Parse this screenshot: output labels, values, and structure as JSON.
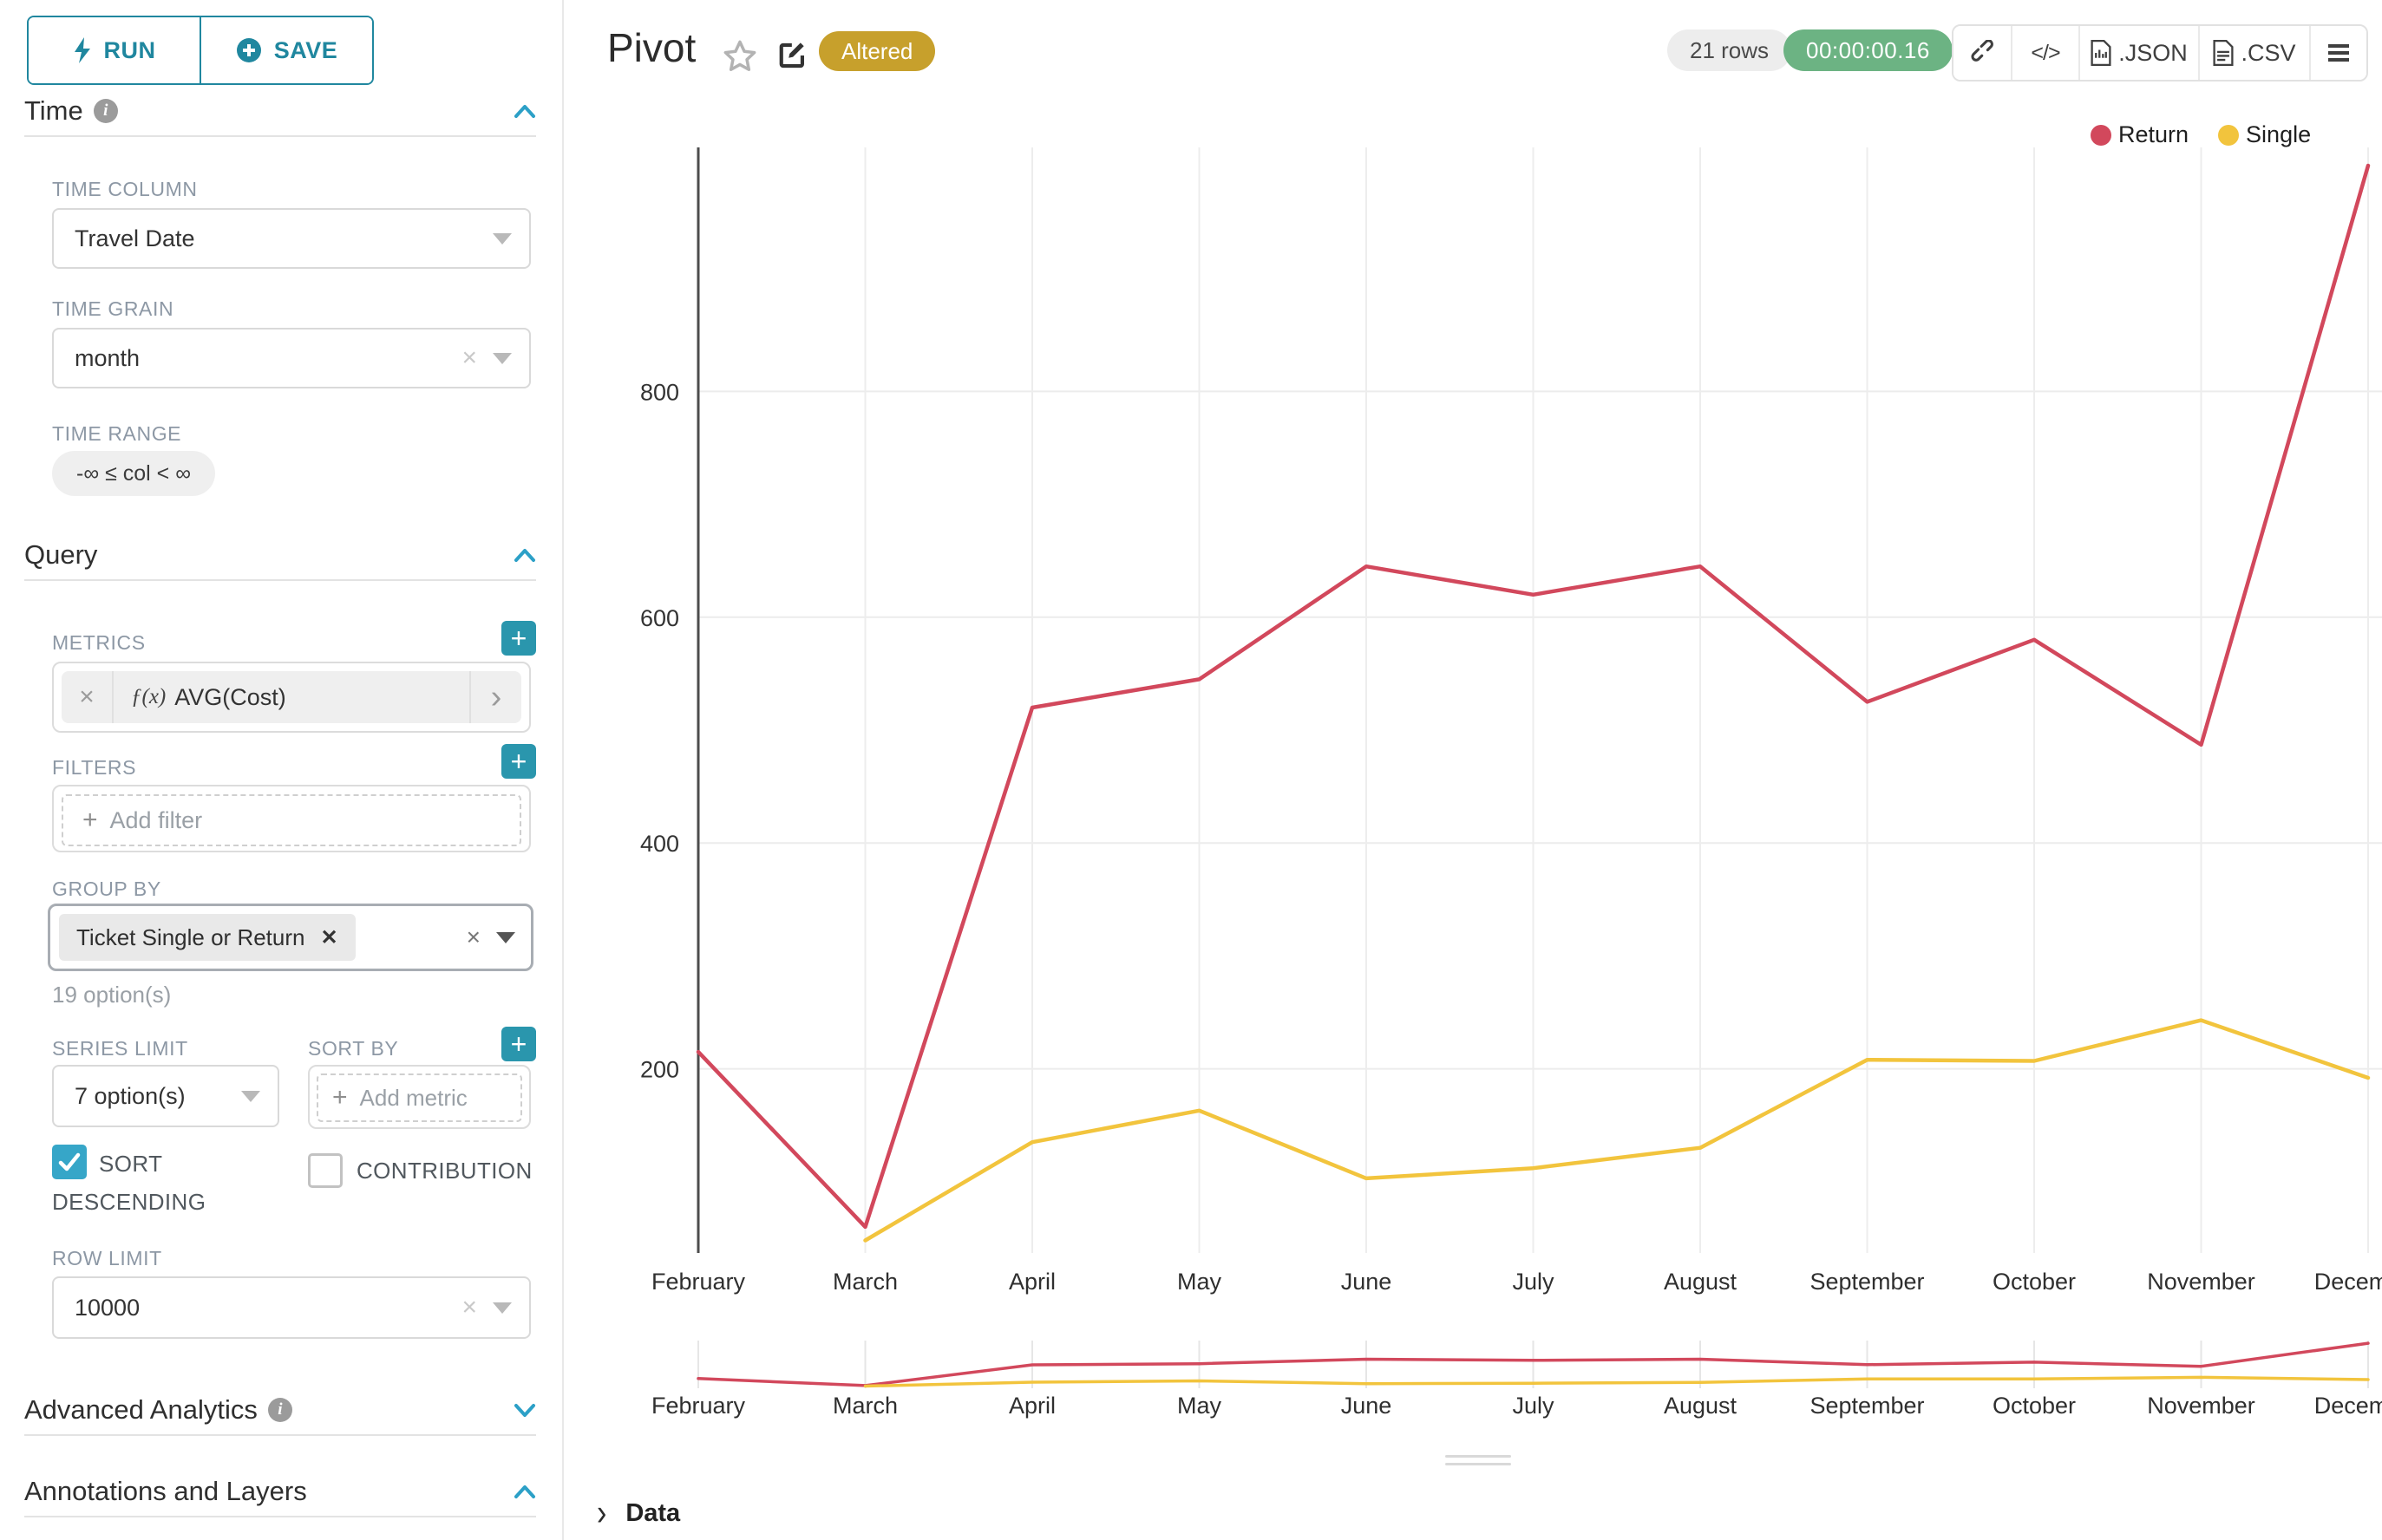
{
  "toolbar": {
    "run_label": "RUN",
    "save_label": "SAVE"
  },
  "sidebar": {
    "time_section_title": "Time",
    "query_section_title": "Query",
    "advanced_section_title": "Advanced Analytics",
    "annotations_section_title": "Annotations and Layers",
    "time_column": {
      "label": "TIME COLUMN",
      "value": "Travel Date"
    },
    "time_grain": {
      "label": "TIME GRAIN",
      "value": "month"
    },
    "time_range": {
      "label": "TIME RANGE",
      "value": "-∞ ≤ col < ∞"
    },
    "metrics": {
      "label": "METRICS",
      "fx": "ƒ(x)",
      "value": "AVG(Cost)"
    },
    "filters": {
      "label": "FILTERS",
      "placeholder": "Add filter"
    },
    "group_by": {
      "label": "GROUP BY",
      "chip": "Ticket Single or Return",
      "hint": "19 option(s)"
    },
    "series_limit": {
      "label": "SERIES LIMIT",
      "value": "7 option(s)"
    },
    "sort_by": {
      "label": "SORT BY",
      "placeholder": "Add metric"
    },
    "sort_descending": {
      "label": "SORT DESCENDING",
      "checked": true
    },
    "contribution": {
      "label": "CONTRIBUTION",
      "checked": false
    },
    "row_limit": {
      "label": "ROW LIMIT",
      "value": "10000"
    }
  },
  "header": {
    "title": "Pivot",
    "badge": "Altered",
    "rows_badge": "21 rows",
    "timer": "00:00:00.16",
    "export_json_label": ".JSON",
    "export_csv_label": ".CSV"
  },
  "chart_data": {
    "type": "line",
    "title": "",
    "xlabel": "",
    "ylabel": "",
    "categories": [
      "February",
      "March",
      "April",
      "May",
      "June",
      "July",
      "August",
      "September",
      "October",
      "November",
      "December"
    ],
    "series": [
      {
        "name": "Return",
        "color": "#d2485c",
        "values": [
          215,
          60,
          520,
          545,
          645,
          620,
          645,
          525,
          580,
          487,
          1000
        ]
      },
      {
        "name": "Single",
        "color": "#f2c43d",
        "values": [
          null,
          48,
          135,
          163,
          103,
          112,
          130,
          208,
          207,
          243,
          192
        ]
      }
    ],
    "yticks": [
      200,
      400,
      600,
      800
    ],
    "ylim": [
      0,
      1060
    ],
    "grid": true,
    "legend_position": "top-right",
    "has_preview_strip": true
  },
  "data_panel": {
    "label": "Data"
  },
  "colors": {
    "accent_teal": "#20879f",
    "plus_button": "#2a96ad",
    "checkbox_checked": "#36a6c8",
    "chevron_blue": "#2ca0c7",
    "altered_badge": "#c7a02c",
    "timer_green": "#6cb383",
    "return_red": "#d2485c",
    "single_yellow": "#f2c43d"
  }
}
